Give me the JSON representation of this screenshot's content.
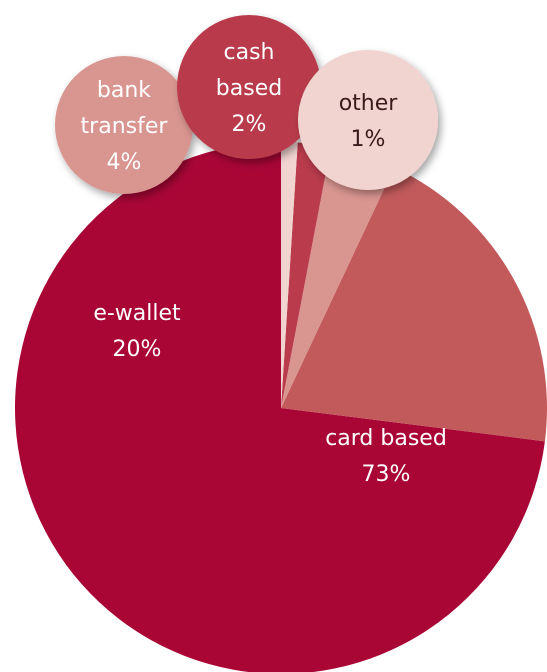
{
  "chart_data": {
    "type": "pie",
    "title": "",
    "legend": "none",
    "slices": [
      {
        "name": "card based",
        "label_line1": "card based",
        "label_line2": "",
        "value": 73,
        "value_label": "73%",
        "color": "#a90636",
        "text_color": "#ffffff"
      },
      {
        "name": "e-wallet",
        "label_line1": "e-wallet",
        "label_line2": "",
        "value": 20,
        "value_label": "20%",
        "color": "#c25a5c",
        "text_color": "#ffffff"
      },
      {
        "name": "bank transfer",
        "label_line1": "bank",
        "label_line2": "transfer",
        "value": 4,
        "value_label": "4%",
        "color": "#d99590",
        "text_color": "#ffffff"
      },
      {
        "name": "cash based",
        "label_line1": "cash",
        "label_line2": "based",
        "value": 2,
        "value_label": "2%",
        "color": "#b93b4c",
        "text_color": "#ffffff"
      },
      {
        "name": "other",
        "label_line1": "other",
        "label_line2": "",
        "value": 1,
        "value_label": "1%",
        "color": "#f1d3d0",
        "text_color": "#3a1a1a"
      }
    ],
    "start_angle_deg": 0,
    "direction": "clockwise",
    "label_style": "callout bubbles for small slices"
  }
}
